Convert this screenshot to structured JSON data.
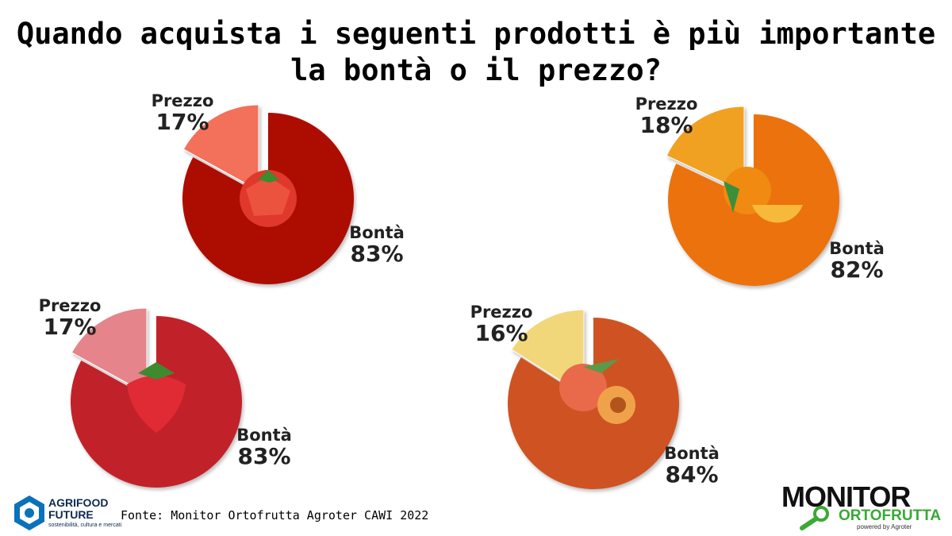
{
  "title_line1": "Quando acquista i seguenti prodotti è più importante",
  "title_line2": "la bontà o il prezzo?",
  "chart_data": [
    {
      "type": "pie",
      "product_icon": "tomato-icon",
      "slices": [
        {
          "label": "Prezzo",
          "value": 17,
          "display": "17%",
          "color": "#f36f5a"
        },
        {
          "label": "Bontà",
          "value": 83,
          "display": "83%",
          "color": "#ad0c05"
        }
      ]
    },
    {
      "type": "pie",
      "product_icon": "orange-icon",
      "slices": [
        {
          "label": "Prezzo",
          "value": 18,
          "display": "18%",
          "color": "#f1a124"
        },
        {
          "label": "Bontà",
          "value": 82,
          "display": "82%",
          "color": "#ec720c"
        }
      ]
    },
    {
      "type": "pie",
      "product_icon": "strawberry-icon",
      "slices": [
        {
          "label": "Prezzo",
          "value": 17,
          "display": "17%",
          "color": "#e5848a"
        },
        {
          "label": "Bontà",
          "value": 83,
          "display": "83%",
          "color": "#c1202b"
        }
      ]
    },
    {
      "type": "pie",
      "product_icon": "peach-icon",
      "slices": [
        {
          "label": "Prezzo",
          "value": 16,
          "display": "16%",
          "color": "#f2d67a"
        },
        {
          "label": "Bontà",
          "value": 84,
          "display": "84%",
          "color": "#cf5224"
        }
      ]
    }
  ],
  "source": "Fonte: Monitor Ortofrutta Agroter CAWI 2022",
  "logo_left": {
    "line1": "AGRIFOOD",
    "line2": "FUTURE",
    "tagline": "sostenibilità, cultura e mercati"
  },
  "logo_right": {
    "line1": "MONITOR",
    "line2": "ORTOFRUTTA",
    "line3": "powered by Agroter"
  }
}
